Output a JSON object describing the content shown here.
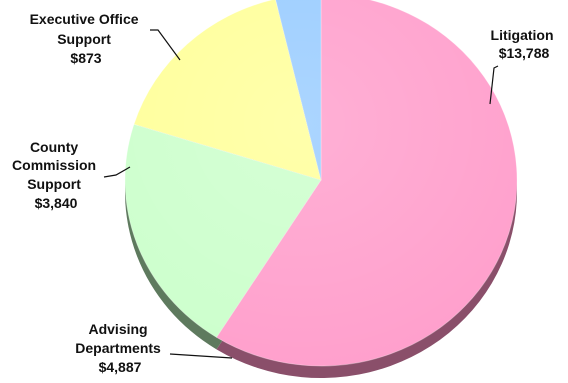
{
  "chart_data": {
    "type": "pie",
    "title": "",
    "slices": [
      {
        "label": "Litigation",
        "value": 13788,
        "value_label": "$13,788",
        "color": "#ff9fcc",
        "shade": "#8a4f6a"
      },
      {
        "label": "Advising Departments",
        "value": 4887,
        "value_label": "$4,887",
        "color": "#ccffcc",
        "shade": "#5e7a5e"
      },
      {
        "label": "County Commission Support",
        "value": 3840,
        "value_label": "$3,840",
        "color": "#ffff99",
        "shade": "#8a8a55"
      },
      {
        "label": "Executive Office Support",
        "value": 873,
        "value_label": "$873",
        "color": "#99ccff",
        "shade": "#55708a"
      }
    ],
    "start_direction": "twelve o'clock",
    "order": "clockwise",
    "style": "3d-tilted"
  },
  "labels": {
    "litigation": [
      "Litigation",
      "$13,788"
    ],
    "advising": [
      "Advising",
      "Departments",
      "$4,887"
    ],
    "commission": [
      "County",
      "Commission",
      "Support",
      "$3,840"
    ],
    "executive": [
      "Executive Office",
      "Support",
      "$873"
    ]
  }
}
